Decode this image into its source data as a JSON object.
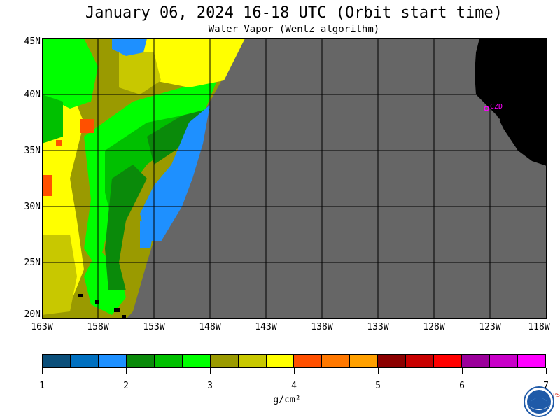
{
  "header": {
    "title": "January 06, 2024  16-18 UTC  (Orbit start time)",
    "subtitle": "Water Vapor (Wentz algorithm)"
  },
  "map": {
    "lat_labels": [
      "45N",
      "40N",
      "35N",
      "30N",
      "25N",
      "20N"
    ],
    "lon_labels": [
      "163W",
      "158W",
      "153W",
      "148W",
      "143W",
      "138W",
      "133W",
      "128W",
      "123W",
      "118W"
    ],
    "station_label": "CZD",
    "colors": {
      "no_data": "#666666",
      "land": "#000000",
      "grid": "#000000",
      "station": "#ff00ff"
    }
  },
  "colorbar": {
    "labels": [
      "1",
      "2",
      "3",
      "4",
      "5",
      "6",
      "7"
    ],
    "units": "g/cm²",
    "colors": [
      "#0b4f7a",
      "#0070c0",
      "#1e90ff",
      "#0a8a0a",
      "#00c000",
      "#00ff00",
      "#9a9a00",
      "#c8c800",
      "#ffff00",
      "#ff5000",
      "#ff7800",
      "#ffa000",
      "#8b0000",
      "#c80000",
      "#ff0000",
      "#9b009b",
      "#c800c8",
      "#ff00ff"
    ]
  },
  "logo": {
    "name": "NOAA",
    "side_text": "PSL"
  }
}
